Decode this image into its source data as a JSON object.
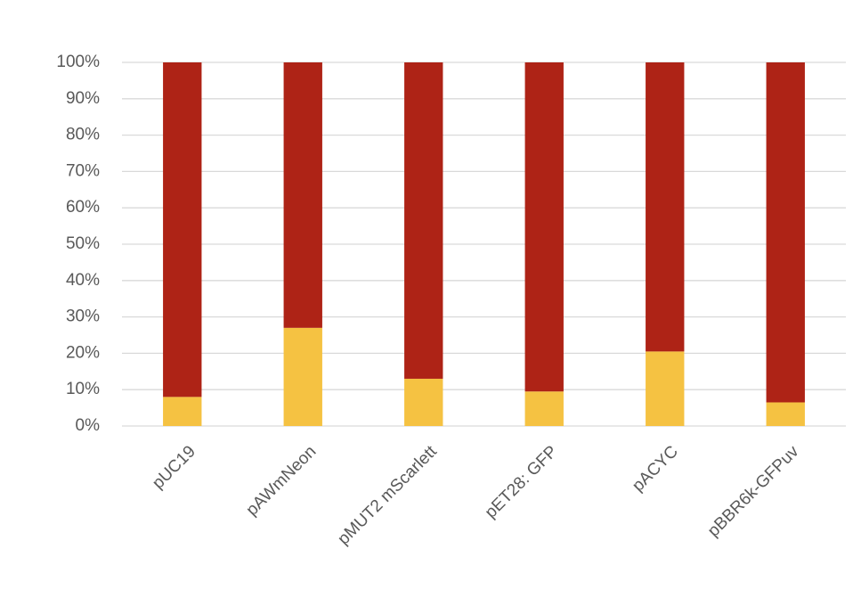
{
  "chart_data": {
    "type": "stacked_bar",
    "categories": [
      "pUC19",
      "pAWmNeon",
      "pMUT2 mScarlett",
      "pET28: GFP",
      "pACYC",
      "pBBR6k-GFPuv"
    ],
    "series": [
      {
        "color": "#f5c242",
        "values": [
          8,
          27,
          13,
          9.5,
          20.5,
          6.5
        ]
      },
      {
        "color": "#ae2316",
        "values": [
          92,
          73,
          87,
          90.5,
          79.5,
          93.5
        ]
      }
    ],
    "ylim": [
      0,
      100
    ],
    "yticks": [
      {
        "value": 0,
        "label": "0%"
      },
      {
        "value": 10,
        "label": "10%"
      },
      {
        "value": 20,
        "label": "20%"
      },
      {
        "value": 30,
        "label": "30%"
      },
      {
        "value": 40,
        "label": "40%"
      },
      {
        "value": 50,
        "label": "50%"
      },
      {
        "value": 60,
        "label": "60%"
      },
      {
        "value": 70,
        "label": "70%"
      },
      {
        "value": 80,
        "label": "80%"
      },
      {
        "value": 90,
        "label": "90%"
      },
      {
        "value": 100,
        "label": "100%"
      }
    ],
    "grid": true
  }
}
